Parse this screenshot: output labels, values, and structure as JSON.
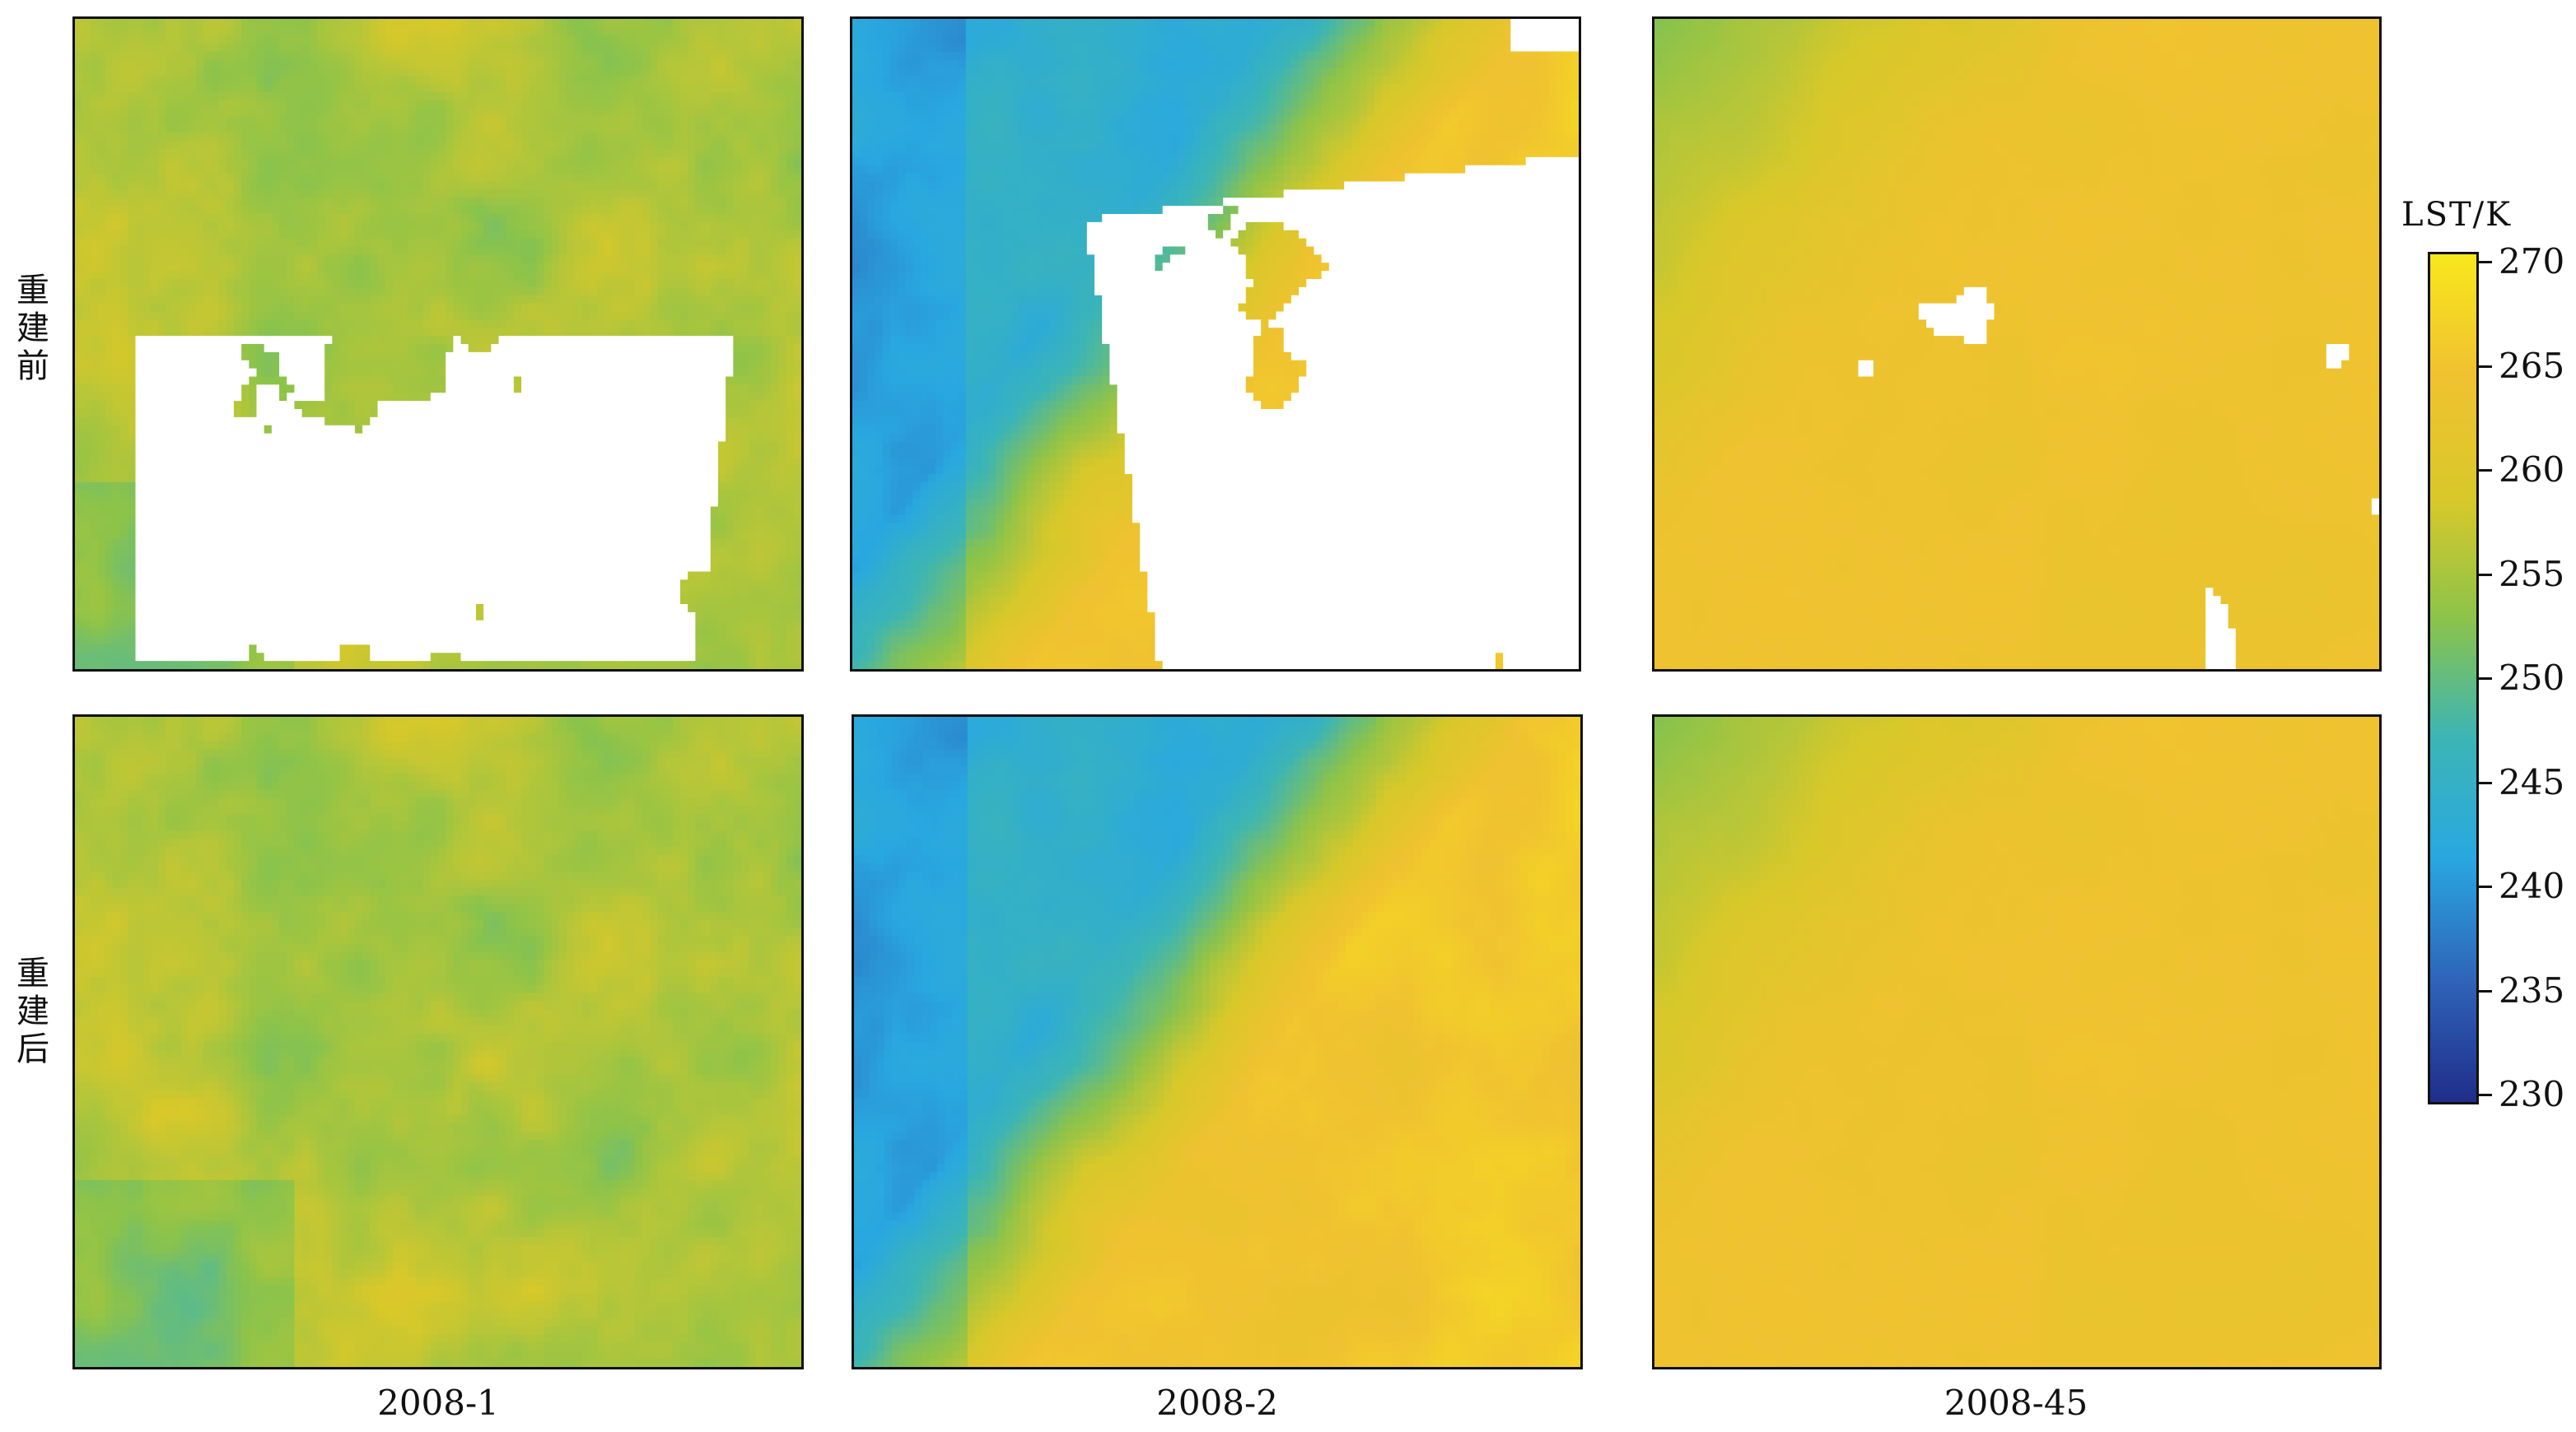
{
  "chart_data": {
    "type": "heatmap",
    "row_labels": [
      "重建前",
      "重建后"
    ],
    "column_labels": [
      "2008-1",
      "2008-2",
      "2008-45"
    ],
    "colorbar": {
      "title": "LST/K",
      "ticks": [
        "270",
        "265",
        "260",
        "255",
        "250",
        "245",
        "240",
        "235",
        "230"
      ],
      "range": [
        230,
        270
      ],
      "colormap": [
        "#1f2e8a",
        "#2f62b8",
        "#29a8e0",
        "#3cb5b5",
        "#8cc34a",
        "#d8c82a",
        "#f0c230",
        "#f8e71c"
      ]
    },
    "panels": [
      {
        "row": "重建前",
        "column": "2008-1",
        "missing_values": "white",
        "approx_mean_lst": 257
      },
      {
        "row": "重建前",
        "column": "2008-2",
        "missing_values": "white",
        "approx_mean_lst": 247
      },
      {
        "row": "重建前",
        "column": "2008-45",
        "missing_values": "white",
        "approx_mean_lst": 262
      },
      {
        "row": "重建后",
        "column": "2008-1",
        "missing_values": "none",
        "approx_mean_lst": 258
      },
      {
        "row": "重建后",
        "column": "2008-2",
        "missing_values": "none",
        "approx_mean_lst": 252
      },
      {
        "row": "重建后",
        "column": "2008-45",
        "missing_values": "none",
        "approx_mean_lst": 263
      }
    ]
  }
}
